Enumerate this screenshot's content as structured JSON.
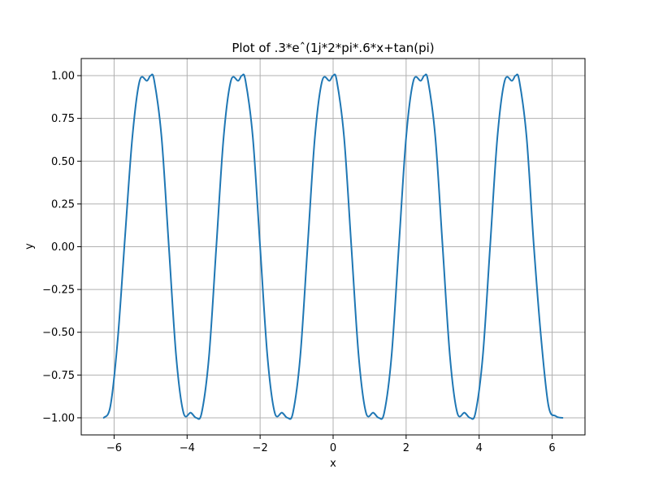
{
  "chart_data": {
    "type": "line",
    "title": "Plot of .3*eˆ(1j*2*pi*.6*x+tan(pi)",
    "xlabel": "x",
    "ylabel": "y",
    "xlim": [
      -6.9,
      6.9
    ],
    "ylim": [
      -1.1,
      1.1
    ],
    "grid": true,
    "legend": null,
    "x_ticks": [
      -6,
      -4,
      -2,
      0,
      2,
      4,
      6
    ],
    "x_tick_labels": [
      "−6",
      "−4",
      "−2",
      "0",
      "2",
      "4",
      "6"
    ],
    "y_ticks": [
      -1.0,
      -0.75,
      -0.5,
      -0.25,
      0.0,
      0.25,
      0.5,
      0.75,
      1.0
    ],
    "y_tick_labels": [
      "−1.00",
      "−0.75",
      "−0.50",
      "−0.25",
      "0.00",
      "0.25",
      "0.50",
      "0.75",
      "1.00"
    ],
    "series": [
      {
        "color": "#1f77b4",
        "x_range": [
          -6.2832,
          6.2832
        ],
        "x": [
          -6.2832,
          -6.1,
          -5.9,
          -5.7,
          -5.5,
          -5.3,
          -5.1,
          -5.0,
          -4.9,
          -4.7,
          -4.5,
          -4.3,
          -4.1,
          -3.9,
          -3.75,
          -3.6,
          -3.4,
          -3.2,
          -3.0,
          -2.8,
          -2.6,
          -2.5,
          -2.4,
          -2.2,
          -2.0,
          -1.8,
          -1.6,
          -1.4,
          -1.25,
          -1.1,
          -0.9,
          -0.7,
          -0.5,
          -0.3,
          -0.1,
          0.0,
          0.1,
          0.3,
          0.5,
          0.7,
          0.9,
          1.1,
          1.25,
          1.4,
          1.6,
          1.8,
          2.0,
          2.2,
          2.4,
          2.5,
          2.6,
          2.8,
          3.0,
          3.2,
          3.4,
          3.6,
          3.75,
          3.9,
          4.1,
          4.3,
          4.5,
          4.7,
          4.9,
          5.0,
          5.1,
          5.3,
          5.5,
          5.7,
          5.9,
          6.1,
          6.2832
        ],
        "y": [
          -1.0,
          -0.93,
          -0.54,
          0.06,
          0.64,
          0.97,
          0.97,
          1.0,
          0.97,
          0.64,
          0.0,
          -0.64,
          -0.97,
          -0.97,
          -1.0,
          -0.97,
          -0.64,
          0.0,
          0.64,
          0.97,
          0.97,
          1.0,
          0.97,
          0.64,
          0.0,
          -0.64,
          -0.97,
          -0.97,
          -1.0,
          -0.97,
          -0.64,
          0.0,
          0.64,
          0.97,
          0.97,
          1.0,
          0.97,
          0.64,
          0.0,
          -0.64,
          -0.97,
          -0.97,
          -1.0,
          -0.97,
          -0.64,
          0.0,
          0.64,
          0.97,
          0.97,
          1.0,
          0.97,
          0.64,
          0.0,
          -0.64,
          -0.97,
          -0.97,
          -1.0,
          -0.97,
          -0.64,
          0.0,
          0.64,
          0.97,
          0.97,
          1.0,
          0.97,
          0.64,
          0.0,
          -0.54,
          -0.93,
          -0.99,
          -1.0
        ]
      }
    ]
  }
}
